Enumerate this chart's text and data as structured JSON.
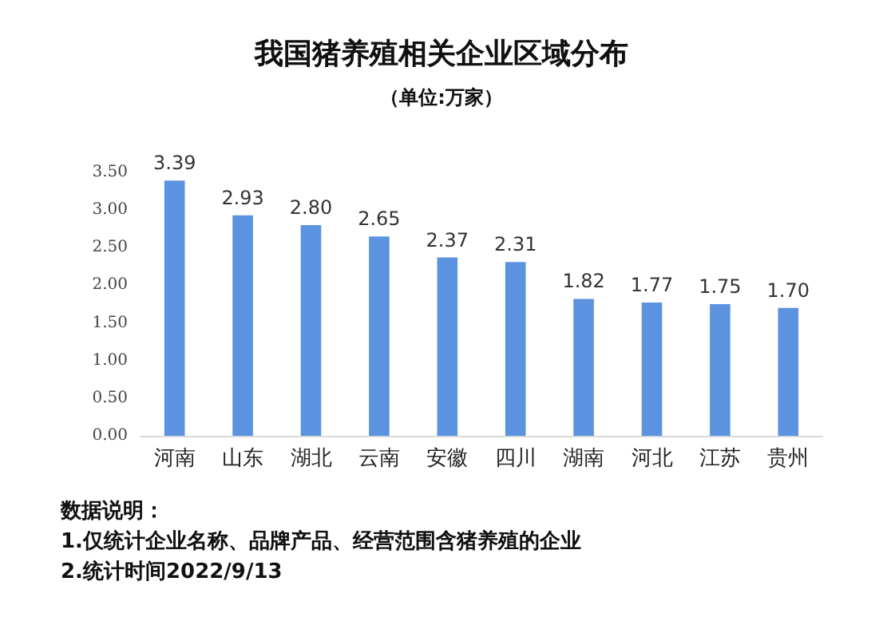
{
  "chart_data": {
    "type": "bar",
    "title": "我国猪养殖相关企业区域分布",
    "subtitle": "（单位:万家）",
    "categories": [
      "河南",
      "山东",
      "湖北",
      "云南",
      "安徽",
      "四川",
      "湖南",
      "河北",
      "江苏",
      "贵州"
    ],
    "values": [
      3.39,
      2.93,
      2.8,
      2.65,
      2.37,
      2.31,
      1.82,
      1.77,
      1.75,
      1.7
    ],
    "value_labels": [
      "3.39",
      "2.93",
      "2.80",
      "2.65",
      "2.37",
      "2.31",
      "1.82",
      "1.77",
      "1.75",
      "1.70"
    ],
    "color": "#5b93e0",
    "ylim": [
      0,
      3.5
    ],
    "yticks": [
      {
        "value": 0,
        "label": "0.00"
      },
      {
        "value": 0.5,
        "label": "0.50"
      },
      {
        "value": 1,
        "label": "1.00"
      },
      {
        "value": 1.5,
        "label": "1.50"
      },
      {
        "value": 2,
        "label": "2.00"
      },
      {
        "value": 2.5,
        "label": "2.50"
      },
      {
        "value": 3,
        "label": "3.00"
      },
      {
        "value": 3.5,
        "label": "3.50"
      }
    ],
    "grid": false,
    "annotations": [
      "数据说明：",
      "1.仅统计企业名称、品牌产品、经营范围含猪养殖的企业",
      "2.统计时间2022/9/13"
    ]
  }
}
